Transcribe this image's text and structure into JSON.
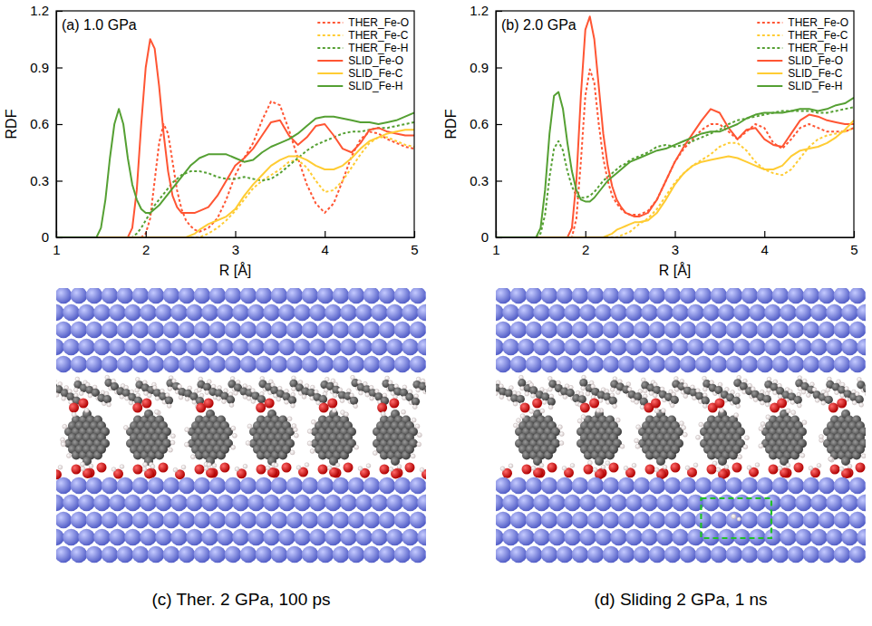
{
  "chart_data": [
    {
      "type": "line",
      "title": "(a) 1.0 GPa",
      "x_label": "R [Å]",
      "y_label": "RDF",
      "x": [
        1.0,
        1.1,
        1.2,
        1.3,
        1.4,
        1.45,
        1.5,
        1.55,
        1.6,
        1.65,
        1.7,
        1.75,
        1.8,
        1.85,
        1.9,
        1.95,
        2.0,
        2.05,
        2.1,
        2.15,
        2.2,
        2.25,
        2.3,
        2.35,
        2.4,
        2.45,
        2.5,
        2.55,
        2.6,
        2.7,
        2.8,
        2.9,
        3.0,
        3.1,
        3.2,
        3.3,
        3.4,
        3.5,
        3.6,
        3.7,
        3.8,
        3.9,
        4.0,
        4.1,
        4.2,
        4.3,
        4.4,
        4.5,
        4.6,
        4.7,
        4.8,
        4.9,
        5.0
      ],
      "xlim": [
        1,
        5
      ],
      "xticks": [
        1,
        2,
        3,
        4,
        5
      ],
      "ylim": [
        0,
        1.2
      ],
      "yticks": [
        0,
        0.3,
        0.6,
        0.9,
        1.2
      ],
      "grid": false,
      "legend": "top-right",
      "series": [
        {
          "name": "THER_Fe-O",
          "color": "#ff5533",
          "line_style": "dotted",
          "values": [
            0,
            0,
            0,
            0,
            0,
            0,
            0,
            0,
            0,
            0,
            0,
            0,
            0,
            0,
            0,
            0,
            0.02,
            0.1,
            0.3,
            0.5,
            0.6,
            0.55,
            0.4,
            0.25,
            0.15,
            0.09,
            0.06,
            0.04,
            0.03,
            0.05,
            0.1,
            0.2,
            0.33,
            0.42,
            0.5,
            0.62,
            0.72,
            0.7,
            0.57,
            0.42,
            0.28,
            0.18,
            0.13,
            0.18,
            0.3,
            0.43,
            0.52,
            0.56,
            0.55,
            0.52,
            0.5,
            0.48,
            0.47
          ]
        },
        {
          "name": "THER_Fe-C",
          "color": "#ffcc33",
          "line_style": "dotted",
          "values": [
            0,
            0,
            0,
            0,
            0,
            0,
            0,
            0,
            0,
            0,
            0,
            0,
            0,
            0,
            0,
            0,
            0,
            0,
            0,
            0,
            0,
            0,
            0,
            0,
            0,
            0,
            0,
            0,
            0,
            0.02,
            0.05,
            0.09,
            0.14,
            0.2,
            0.26,
            0.3,
            0.33,
            0.36,
            0.4,
            0.41,
            0.37,
            0.3,
            0.24,
            0.25,
            0.3,
            0.37,
            0.44,
            0.5,
            0.53,
            0.53,
            0.51,
            0.49,
            0.48
          ]
        },
        {
          "name": "THER_Fe-H",
          "color": "#55a033",
          "line_style": "dotted",
          "values": [
            0,
            0,
            0,
            0,
            0,
            0,
            0,
            0,
            0,
            0,
            0,
            0,
            0,
            0,
            0.02,
            0.05,
            0.09,
            0.13,
            0.17,
            0.2,
            0.23,
            0.26,
            0.29,
            0.31,
            0.33,
            0.34,
            0.35,
            0.35,
            0.35,
            0.34,
            0.32,
            0.31,
            0.31,
            0.32,
            0.31,
            0.3,
            0.31,
            0.34,
            0.38,
            0.42,
            0.46,
            0.49,
            0.51,
            0.53,
            0.55,
            0.56,
            0.56,
            0.57,
            0.58,
            0.58,
            0.59,
            0.6,
            0.61
          ]
        },
        {
          "name": "SLID_Fe-O",
          "color": "#ff5533",
          "line_style": "solid",
          "values": [
            0,
            0,
            0,
            0,
            0,
            0,
            0,
            0,
            0,
            0,
            0,
            0,
            0,
            0.05,
            0.25,
            0.6,
            0.9,
            1.05,
            1.0,
            0.8,
            0.55,
            0.35,
            0.22,
            0.16,
            0.13,
            0.13,
            0.13,
            0.13,
            0.14,
            0.16,
            0.22,
            0.3,
            0.38,
            0.42,
            0.47,
            0.54,
            0.61,
            0.62,
            0.54,
            0.49,
            0.53,
            0.59,
            0.6,
            0.54,
            0.47,
            0.45,
            0.5,
            0.57,
            0.58,
            0.56,
            0.55,
            0.54,
            0.54
          ]
        },
        {
          "name": "SLID_Fe-C",
          "color": "#ffcc33",
          "line_style": "solid",
          "values": [
            0,
            0,
            0,
            0,
            0,
            0,
            0,
            0,
            0,
            0,
            0,
            0,
            0,
            0,
            0,
            0,
            0,
            0,
            0,
            0,
            0,
            0,
            0,
            0,
            0,
            0,
            0.01,
            0.02,
            0.04,
            0.07,
            0.09,
            0.11,
            0.15,
            0.22,
            0.28,
            0.33,
            0.38,
            0.41,
            0.43,
            0.43,
            0.41,
            0.38,
            0.36,
            0.36,
            0.38,
            0.42,
            0.47,
            0.51,
            0.53,
            0.55,
            0.56,
            0.57,
            0.57
          ]
        },
        {
          "name": "SLID_Fe-H",
          "color": "#55a033",
          "line_style": "solid",
          "values": [
            0,
            0,
            0,
            0,
            0,
            0,
            0.05,
            0.2,
            0.42,
            0.6,
            0.68,
            0.6,
            0.42,
            0.28,
            0.2,
            0.15,
            0.13,
            0.13,
            0.15,
            0.17,
            0.2,
            0.23,
            0.26,
            0.29,
            0.32,
            0.35,
            0.38,
            0.4,
            0.42,
            0.44,
            0.44,
            0.44,
            0.42,
            0.4,
            0.41,
            0.45,
            0.48,
            0.5,
            0.52,
            0.55,
            0.59,
            0.63,
            0.64,
            0.64,
            0.63,
            0.62,
            0.61,
            0.61,
            0.6,
            0.61,
            0.62,
            0.64,
            0.66
          ]
        }
      ]
    },
    {
      "type": "line",
      "title": "(b) 2.0 GPa",
      "x_label": "R [Å]",
      "y_label": "RDF",
      "x": [
        1.0,
        1.1,
        1.2,
        1.3,
        1.4,
        1.45,
        1.5,
        1.55,
        1.6,
        1.65,
        1.7,
        1.75,
        1.8,
        1.85,
        1.9,
        1.95,
        2.0,
        2.05,
        2.1,
        2.15,
        2.2,
        2.25,
        2.3,
        2.35,
        2.4,
        2.45,
        2.5,
        2.55,
        2.6,
        2.7,
        2.8,
        2.9,
        3.0,
        3.1,
        3.2,
        3.3,
        3.4,
        3.5,
        3.6,
        3.7,
        3.8,
        3.9,
        4.0,
        4.1,
        4.2,
        4.3,
        4.4,
        4.5,
        4.6,
        4.7,
        4.8,
        4.9,
        5.0
      ],
      "xlim": [
        1,
        5
      ],
      "xticks": [
        1,
        2,
        3,
        4,
        5
      ],
      "ylim": [
        0,
        1.2
      ],
      "yticks": [
        0,
        0.3,
        0.6,
        0.9,
        1.2
      ],
      "grid": false,
      "legend": "top-right",
      "series": [
        {
          "name": "THER_Fe-O",
          "color": "#ff5533",
          "line_style": "dotted",
          "values": [
            0,
            0,
            0,
            0,
            0,
            0,
            0,
            0,
            0,
            0,
            0,
            0,
            0,
            0,
            0.1,
            0.4,
            0.75,
            0.89,
            0.82,
            0.6,
            0.42,
            0.3,
            0.22,
            0.18,
            0.15,
            0.13,
            0.12,
            0.12,
            0.12,
            0.14,
            0.2,
            0.3,
            0.4,
            0.47,
            0.52,
            0.57,
            0.6,
            0.6,
            0.56,
            0.52,
            0.56,
            0.6,
            0.58,
            0.5,
            0.47,
            0.52,
            0.58,
            0.6,
            0.58,
            0.56,
            0.56,
            0.56,
            0.58
          ]
        },
        {
          "name": "THER_Fe-C",
          "color": "#ffcc33",
          "line_style": "dotted",
          "values": [
            0,
            0,
            0,
            0,
            0,
            0,
            0,
            0,
            0,
            0,
            0,
            0,
            0,
            0,
            0,
            0,
            0,
            0,
            0,
            0,
            0,
            0,
            0,
            0,
            0.01,
            0.02,
            0.03,
            0.05,
            0.07,
            0.1,
            0.15,
            0.22,
            0.29,
            0.34,
            0.38,
            0.41,
            0.44,
            0.48,
            0.5,
            0.5,
            0.46,
            0.4,
            0.36,
            0.34,
            0.33,
            0.36,
            0.42,
            0.48,
            0.52,
            0.54,
            0.55,
            0.56,
            0.58
          ]
        },
        {
          "name": "THER_Fe-H",
          "color": "#55a033",
          "line_style": "dotted",
          "values": [
            0,
            0,
            0,
            0,
            0,
            0,
            0.02,
            0.12,
            0.32,
            0.47,
            0.51,
            0.46,
            0.35,
            0.27,
            0.22,
            0.21,
            0.21,
            0.22,
            0.24,
            0.27,
            0.3,
            0.32,
            0.34,
            0.36,
            0.38,
            0.39,
            0.41,
            0.42,
            0.43,
            0.45,
            0.48,
            0.49,
            0.48,
            0.49,
            0.51,
            0.53,
            0.55,
            0.57,
            0.6,
            0.62,
            0.63,
            0.64,
            0.65,
            0.66,
            0.67,
            0.67,
            0.67,
            0.67,
            0.66,
            0.66,
            0.67,
            0.68,
            0.69
          ]
        },
        {
          "name": "SLID_Fe-O",
          "color": "#ff5533",
          "line_style": "solid",
          "values": [
            0,
            0,
            0,
            0,
            0,
            0,
            0,
            0,
            0,
            0,
            0,
            0,
            0,
            0.05,
            0.3,
            0.75,
            1.1,
            1.17,
            1.05,
            0.8,
            0.55,
            0.38,
            0.27,
            0.2,
            0.16,
            0.13,
            0.12,
            0.11,
            0.11,
            0.13,
            0.2,
            0.3,
            0.4,
            0.48,
            0.55,
            0.62,
            0.68,
            0.66,
            0.58,
            0.52,
            0.57,
            0.58,
            0.52,
            0.49,
            0.48,
            0.55,
            0.62,
            0.65,
            0.64,
            0.62,
            0.61,
            0.6,
            0.6
          ]
        },
        {
          "name": "SLID_Fe-C",
          "color": "#ffcc33",
          "line_style": "solid",
          "values": [
            0,
            0,
            0,
            0,
            0,
            0,
            0,
            0,
            0,
            0,
            0,
            0,
            0,
            0,
            0,
            0,
            0,
            0,
            0,
            0,
            0,
            0.01,
            0.02,
            0.04,
            0.05,
            0.06,
            0.07,
            0.08,
            0.08,
            0.09,
            0.13,
            0.2,
            0.28,
            0.34,
            0.38,
            0.4,
            0.41,
            0.42,
            0.43,
            0.42,
            0.4,
            0.38,
            0.36,
            0.36,
            0.38,
            0.43,
            0.46,
            0.47,
            0.48,
            0.5,
            0.53,
            0.57,
            0.62
          ]
        },
        {
          "name": "SLID_Fe-H",
          "color": "#55a033",
          "line_style": "solid",
          "values": [
            0,
            0,
            0,
            0,
            0,
            0,
            0.05,
            0.25,
            0.55,
            0.75,
            0.77,
            0.68,
            0.5,
            0.35,
            0.25,
            0.2,
            0.19,
            0.19,
            0.21,
            0.24,
            0.27,
            0.3,
            0.32,
            0.34,
            0.36,
            0.38,
            0.4,
            0.41,
            0.42,
            0.44,
            0.46,
            0.47,
            0.49,
            0.51,
            0.53,
            0.55,
            0.56,
            0.56,
            0.58,
            0.6,
            0.63,
            0.65,
            0.66,
            0.66,
            0.66,
            0.67,
            0.68,
            0.68,
            0.67,
            0.68,
            0.7,
            0.71,
            0.74
          ]
        }
      ]
    }
  ],
  "images": [
    {
      "caption": "(c) Ther. 2 GPa, 100 ps"
    },
    {
      "caption": "(d) Sliding 2 GPa, 1 ns"
    }
  ]
}
